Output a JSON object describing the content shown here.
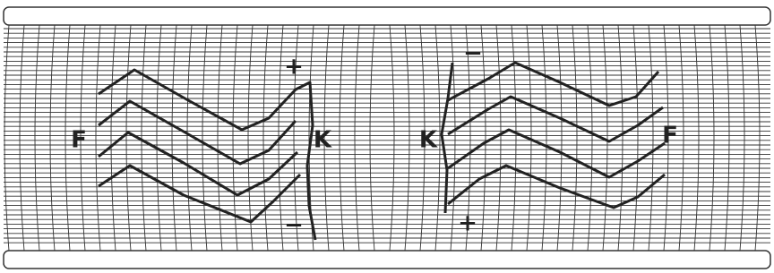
{
  "labels": {
    "left": {
      "f": "F",
      "k": "K",
      "plus": "+",
      "minus": "−"
    },
    "right": {
      "k": "K",
      "f": "F",
      "minus": "−",
      "plus": "+"
    }
  }
}
